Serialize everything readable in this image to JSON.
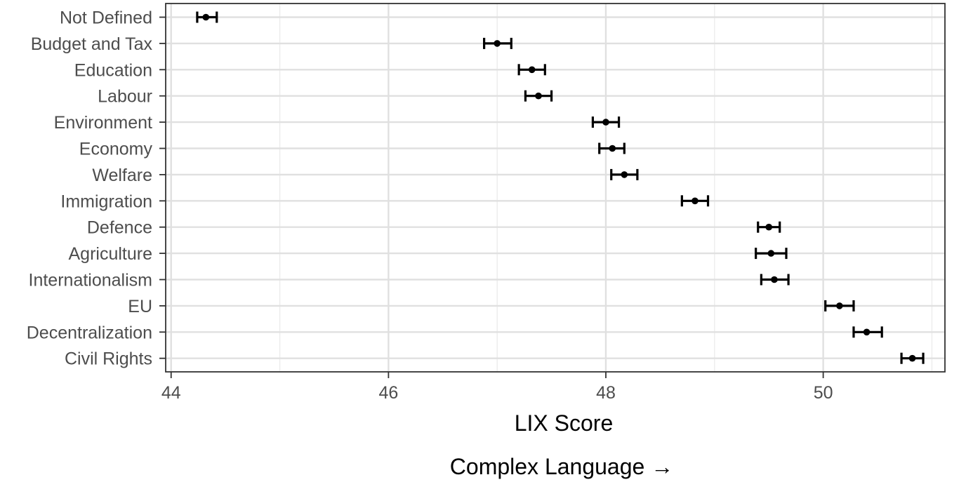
{
  "chart_data": {
    "type": "dotplot-errorbar",
    "categories": [
      "Not Defined",
      "Budget and Tax",
      "Education",
      "Labour",
      "Environment",
      "Economy",
      "Welfare",
      "Immigration",
      "Defence",
      "Agriculture",
      "Internationalism",
      "EU",
      "Decentralization",
      "Civil Rights"
    ],
    "estimates": [
      44.32,
      47.0,
      47.32,
      47.38,
      48.0,
      48.06,
      48.17,
      48.82,
      49.5,
      49.52,
      49.55,
      50.15,
      50.4,
      50.82
    ],
    "lower": [
      44.24,
      46.88,
      47.2,
      47.26,
      47.88,
      47.94,
      48.05,
      48.7,
      49.4,
      49.38,
      49.43,
      50.02,
      50.28,
      50.72
    ],
    "upper": [
      44.42,
      47.13,
      47.44,
      47.5,
      48.12,
      48.17,
      48.29,
      48.94,
      49.6,
      49.66,
      49.68,
      50.28,
      50.54,
      50.92
    ],
    "xlim": [
      43.95,
      51.12
    ],
    "xticks": [
      44,
      46,
      48,
      50
    ],
    "xtick_labels": [
      "44",
      "46",
      "48",
      "50"
    ],
    "xlabel": "LIX Score",
    "note": "Complex Language →",
    "grid": true
  }
}
